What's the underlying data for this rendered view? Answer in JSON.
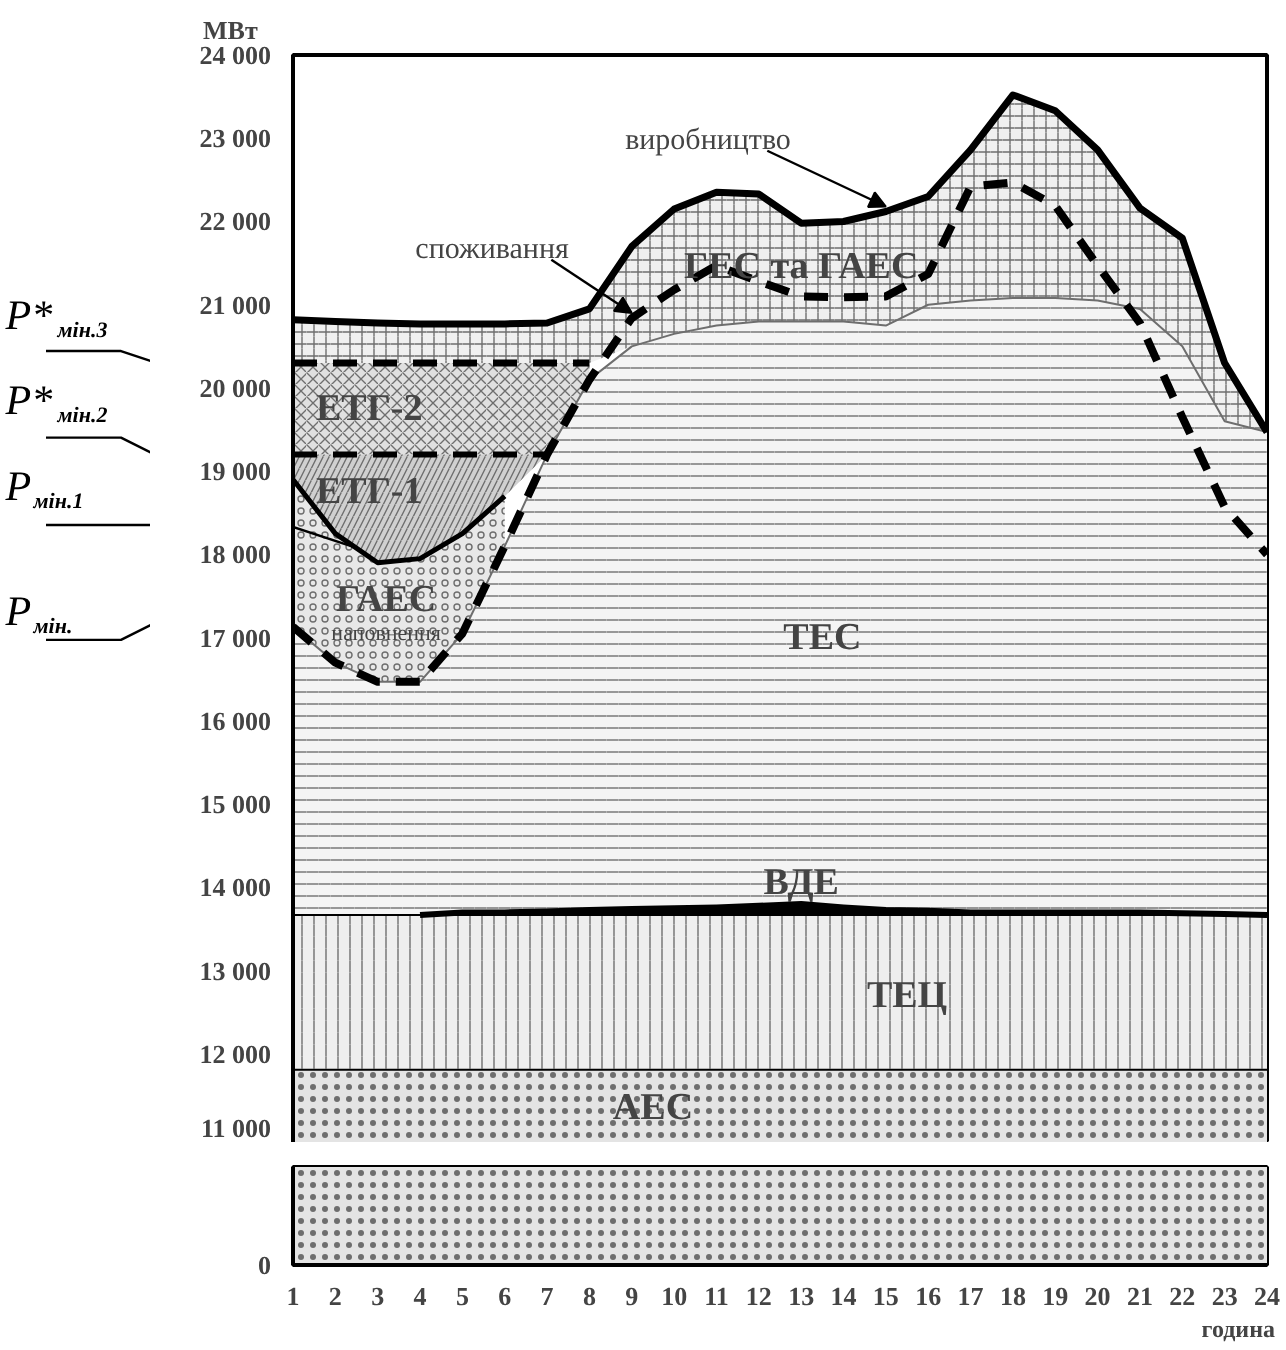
{
  "chart_data": {
    "type": "area",
    "ylabel": "МВт",
    "xlabel": "година",
    "x": [
      1,
      2,
      3,
      4,
      5,
      6,
      7,
      8,
      9,
      10,
      11,
      12,
      13,
      14,
      15,
      16,
      17,
      18,
      19,
      20,
      21,
      22,
      23,
      24
    ],
    "xlim": [
      1,
      24
    ],
    "xticks": [
      1,
      2,
      3,
      4,
      5,
      6,
      7,
      8,
      9,
      10,
      11,
      12,
      13,
      14,
      15,
      16,
      17,
      18,
      19,
      20,
      21,
      22,
      23,
      24
    ],
    "ylim": [
      10930,
      24000
    ],
    "yticks": [
      {
        "value": 11000,
        "label": "11 000"
      },
      {
        "value": 12000,
        "label": "12 000"
      },
      {
        "value": 13000,
        "label": "13 000"
      },
      {
        "value": 14000,
        "label": "14 000"
      },
      {
        "value": 15000,
        "label": "15 000"
      },
      {
        "value": 16000,
        "label": "16 000"
      },
      {
        "value": 17000,
        "label": "17 000"
      },
      {
        "value": 18000,
        "label": "18 000"
      },
      {
        "value": 19000,
        "label": "19 000"
      },
      {
        "value": 20000,
        "label": "20 000"
      },
      {
        "value": 21000,
        "label": "21 000"
      },
      {
        "value": 22000,
        "label": "22 000"
      },
      {
        "value": 23000,
        "label": "23 000"
      },
      {
        "value": 24000,
        "label": "24 000"
      }
    ],
    "grid": false,
    "series": [
      {
        "color": "#e4e4e4",
        "line_style": "solid",
        "values": [
          11810,
          11810,
          11810,
          11810,
          11810,
          11810,
          11810,
          11810,
          11810,
          11810,
          11810,
          11810,
          11810,
          11810,
          11810,
          11810,
          11810,
          11810,
          11810,
          11810,
          11810,
          11810,
          11810,
          11810
        ]
      },
      {
        "color": "#eeeeee",
        "line_style": "solid",
        "values": [
          13670,
          13670,
          13670,
          13670,
          13670,
          13670,
          13670,
          13670,
          13670,
          13670,
          13670,
          13670,
          13670,
          13670,
          13670,
          13670,
          13670,
          13670,
          13670,
          13670,
          13670,
          13670,
          13670,
          13670
        ]
      },
      {
        "color": "#000000",
        "line_style": "solid",
        "values": [
          null,
          null,
          null,
          13670,
          13700,
          13700,
          13710,
          13730,
          13740,
          13750,
          13760,
          13780,
          13800,
          13760,
          13730,
          13720,
          13700,
          13700,
          13700,
          13700,
          13700,
          13690,
          13680,
          13670
        ]
      },
      {
        "color": "#f4f4f4",
        "line_style": "solid",
        "values": [
          17130,
          16700,
          16470,
          16470,
          17050,
          18100,
          19200,
          20100,
          20500,
          20650,
          20750,
          20800,
          20800,
          20800,
          20750,
          21000,
          21050,
          21080,
          21080,
          21050,
          20950,
          20500,
          19600,
          19470
        ]
      },
      {
        "color": "#e8e8e8",
        "line_style": "solid",
        "values": [
          18900,
          18250,
          17900,
          17950,
          18250,
          18700,
          null,
          null,
          null,
          null,
          null,
          null,
          null,
          null,
          null,
          null,
          null,
          null,
          null,
          null,
          null,
          null,
          null,
          null
        ]
      },
      {
        "color": "#d0d0d0",
        "line_style": "dashed",
        "values": [
          19200,
          19200,
          19200,
          19200,
          19200,
          19200,
          19200,
          null,
          null,
          null,
          null,
          null,
          null,
          null,
          null,
          null,
          null,
          null,
          null,
          null,
          null,
          null,
          null,
          null
        ]
      },
      {
        "color": "#e0e0e0",
        "line_style": "dashed",
        "values": [
          20300,
          20300,
          20300,
          20300,
          20300,
          20300,
          20300,
          20300,
          null,
          null,
          null,
          null,
          null,
          null,
          null,
          null,
          null,
          null,
          null,
          null,
          null,
          null,
          null,
          null
        ]
      },
      {
        "color": "#f0f0f0",
        "line_style": "solid",
        "values": [
          20820,
          20800,
          20780,
          20770,
          20770,
          20770,
          20780,
          20950,
          21700,
          22150,
          22350,
          22330,
          21980,
          22000,
          22120,
          22300,
          22860,
          23520,
          23330,
          22860,
          22160,
          21800,
          20300,
          19470
        ]
      },
      {
        "type": "line",
        "color": "#000000",
        "line_style": "dashed",
        "values": [
          17130,
          16700,
          16470,
          16470,
          17050,
          18100,
          19200,
          20100,
          20840,
          21180,
          21470,
          21280,
          21100,
          21090,
          21100,
          21370,
          22420,
          22470,
          22190,
          21470,
          20780,
          19650,
          18570,
          18000
        ]
      }
    ],
    "annotations": [
      "ГЕС та ГАЕС",
      "ЕТГ-2",
      "ЕТГ-1",
      "ГАЕС",
      "наповнення",
      "ТЕС",
      "ВДЕ",
      "ТЕЦ",
      "АЕС",
      {
        "text": "виробництво",
        "x": 15,
        "y": 22120
      },
      {
        "text": "споживання",
        "x": 9,
        "y": 20840
      },
      "P*$_{мін.3}$",
      "P*$_{мін.2}$",
      "P$_{мін.1}$",
      "P$_{мін.}$",
      "0"
    ]
  }
}
